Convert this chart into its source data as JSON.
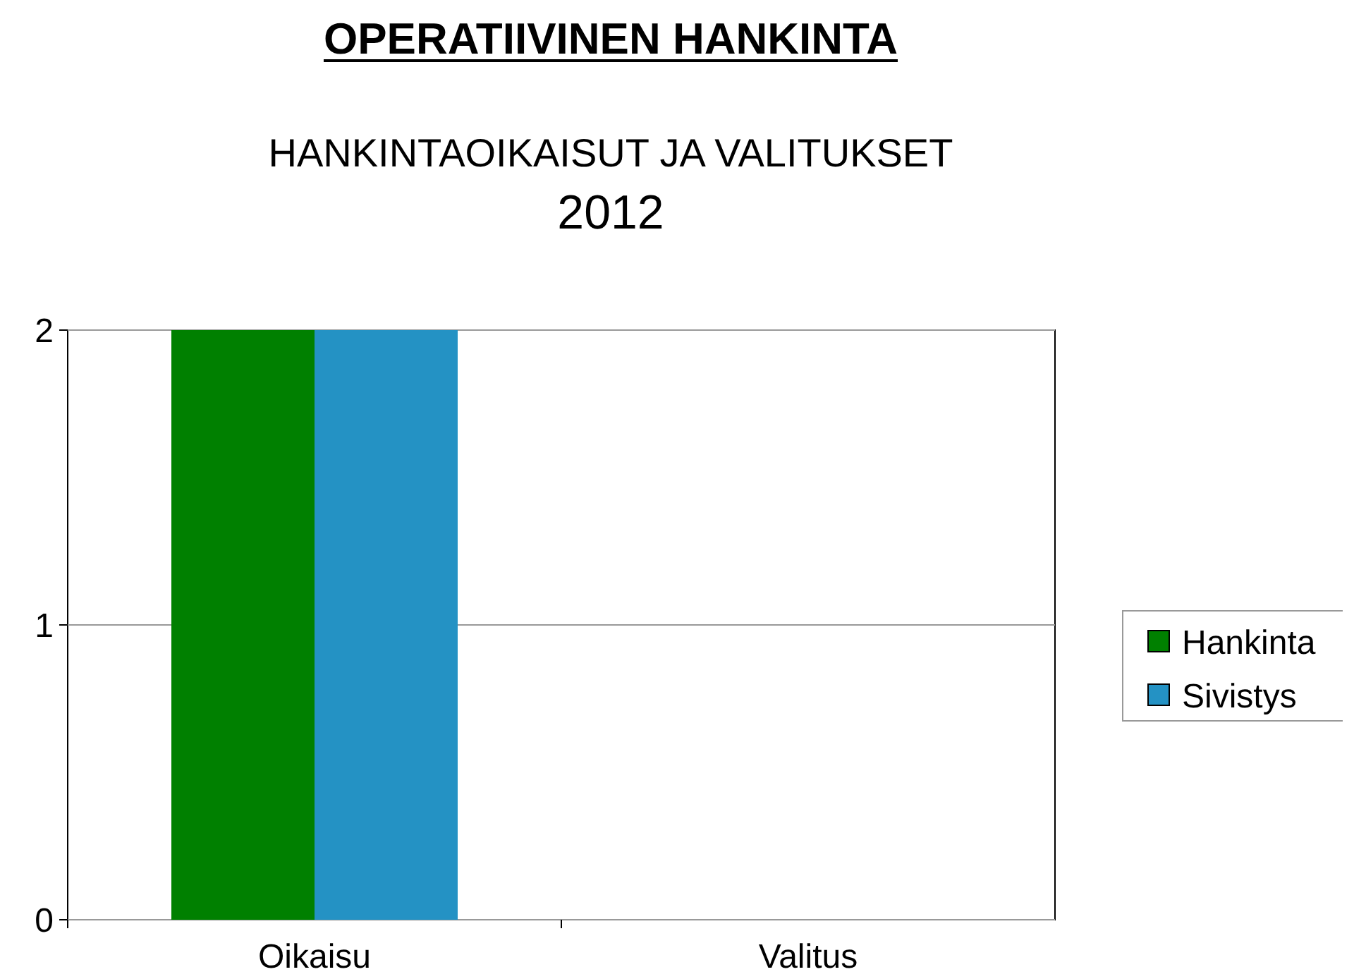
{
  "chart_data": {
    "type": "bar",
    "title": "OPERATIIVINEN HANKINTA",
    "subtitle": "HANKINTAOIKAISUT JA VALITUKSET\n2012",
    "categories": [
      "Oikaisu",
      "Valitus"
    ],
    "series": [
      {
        "name": "Hankinta",
        "color": "#008000",
        "values": [
          2,
          0
        ]
      },
      {
        "name": "Sivistys",
        "color": "#2492c4",
        "values": [
          2,
          0
        ]
      }
    ],
    "ylim": [
      0,
      2
    ],
    "yticks": [
      0,
      1,
      2
    ],
    "grid": "y",
    "legend": "right"
  }
}
